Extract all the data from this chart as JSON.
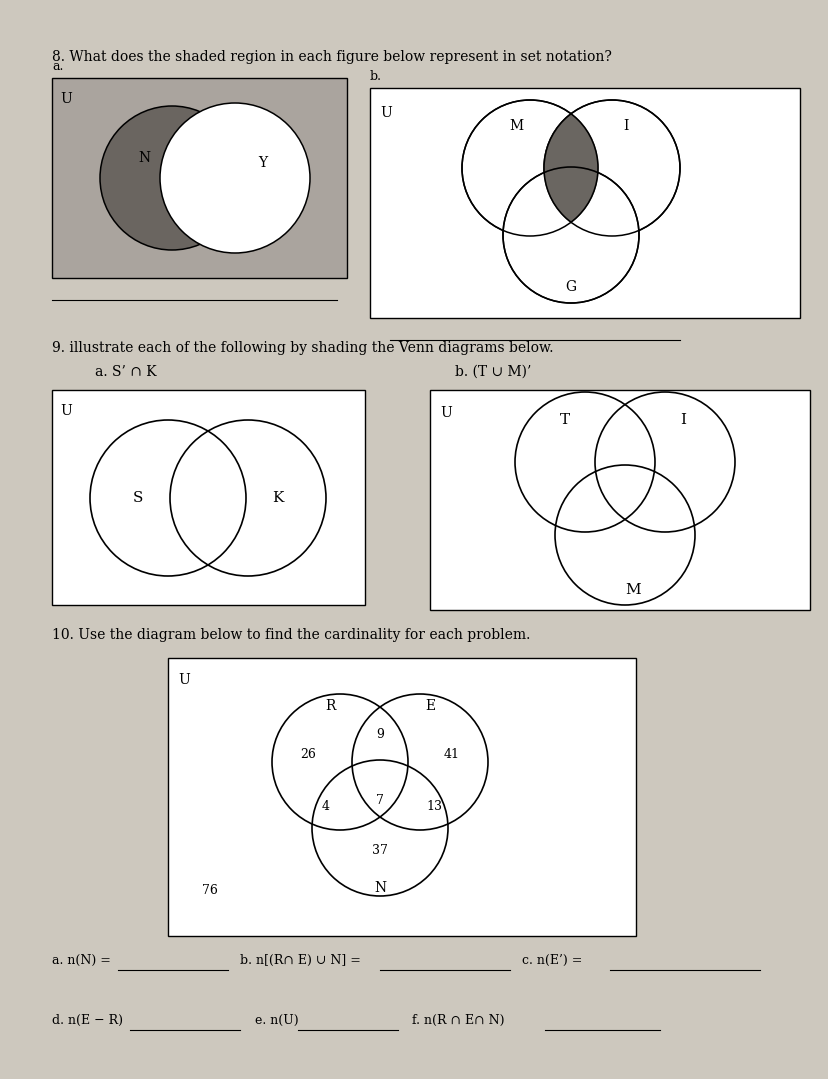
{
  "paper_color": "#cdc8be",
  "white": "#ffffff",
  "q8_header": "8. What does the shaded region in each figure below represent in set notation?",
  "q9_header": "9. illustrate each of the following by shading the Venn diagrams below.",
  "q10_header": "10. Use the diagram below to find the cardinality for each problem.",
  "q8a_label": "a.",
  "q8b_label": "b.",
  "q8a_U": "U",
  "q8a_left_label": "N",
  "q8a_right_label": "Y",
  "q8b_U": "U",
  "q8b_M": "M",
  "q8b_I": "I",
  "q8b_G": "G",
  "q9a_label": "a. S’ ∩ K",
  "q9b_label": "b. (T ∪ M)’",
  "q9a_U": "U",
  "q9a_S": "S",
  "q9a_K": "K",
  "q9b_U": "U",
  "q9b_T": "T",
  "q9b_I": "I",
  "q9b_M": "M",
  "q10_U": "U",
  "q10_R": "R",
  "q10_E": "E",
  "q10_N": "N",
  "q10_R_only": "26",
  "q10_E_only": "41",
  "q10_RE_only": "9",
  "q10_REN": "7",
  "q10_RN_only": "4",
  "q10_EN_only": "13",
  "q10_N_only": "37",
  "q10_outside": "76",
  "q10a_text": "a. n(N) =",
  "q10b_text": "b. n[(R∩ E) ∪ N] =",
  "q10c_text": "c. n(E’) =",
  "q10d_text": "d. n(E − R)",
  "q10e_text": "e. n(U)",
  "q10f_text": "f. n(R ∩ E∩ N)",
  "shade_gray": "#aaa49e",
  "shade_dark": "#6a6560",
  "shade_mi": "#5a5550"
}
